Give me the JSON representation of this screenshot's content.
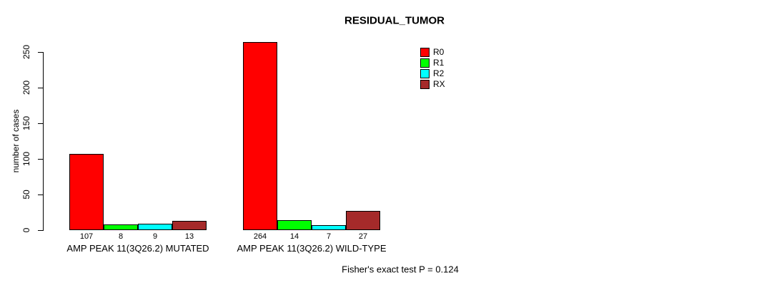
{
  "chart_data": {
    "type": "bar",
    "title": "RESIDUAL_TUMOR",
    "ylabel": "number of cases",
    "xlabel": "",
    "categories": [
      "AMP PEAK 11(3Q26.2) MUTATED",
      "AMP PEAK 11(3Q26.2) WILD-TYPE"
    ],
    "series": [
      {
        "name": "R0",
        "color": "#FF0000",
        "values": [
          107,
          264
        ]
      },
      {
        "name": "R1",
        "color": "#00FF00",
        "values": [
          8,
          14
        ]
      },
      {
        "name": "R2",
        "color": "#00FFFF",
        "values": [
          9,
          7
        ]
      },
      {
        "name": "RX",
        "color": "#A52A2A",
        "values": [
          13,
          27
        ]
      }
    ],
    "yticks": [
      0,
      50,
      100,
      150,
      200,
      250
    ],
    "ylim": [
      0,
      250
    ],
    "grid": false,
    "legend_position": "top-right",
    "annotation": "Fisher's exact test P = 0.124"
  }
}
